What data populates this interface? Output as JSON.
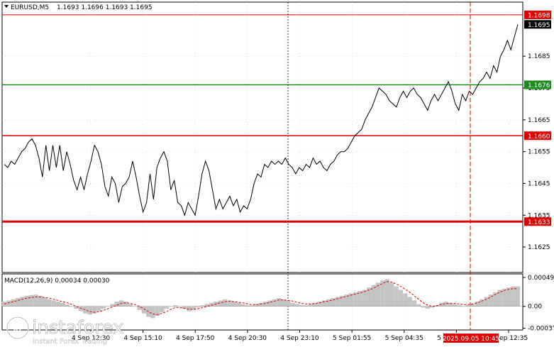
{
  "header": {
    "symbol": "EURUSD,M5",
    "ohlc": "1.1693 1.1696 1.1693 1.1695"
  },
  "macd_label": "MACD(12,26,9) 0.00034 0.00030",
  "watermark": {
    "brand": "instaforex",
    "tagline": "Instant Forex Trading"
  },
  "colors": {
    "resistance": "#e00000",
    "current": "#000000",
    "level_green": "#1a8a1a",
    "level_red": "#e00000",
    "macd_hist": "#c4c4c4",
    "macd_signal": "#e00000"
  },
  "chart_data": [
    {
      "type": "line",
      "ylim": [
        1.1617,
        1.1702
      ],
      "y_ticks": [
        "1.1685",
        "1.1675",
        "1.1665",
        "1.1655",
        "1.1645",
        "1.1635",
        "1.1625"
      ],
      "x_ticks": [
        "4 Sep 12:30",
        "4 Sep 15:10",
        "4 Sep 17:50",
        "4 Sep 20:30",
        "4 Sep 23:10",
        "5 Sep 01:55",
        "5 Sep 04:35",
        "5 Sep 07:15",
        "5 Sep 12:35"
      ],
      "price_tags": [
        {
          "label": "1.1698",
          "value": 1.1698,
          "style": "resistance"
        },
        {
          "label": "1.1695",
          "value": 1.1695,
          "style": "current"
        },
        {
          "label": "1.1676",
          "value": 1.1676,
          "style": "level_green"
        },
        {
          "label": "1.1660",
          "value": 1.166,
          "style": "level_red"
        },
        {
          "label": "1.1633",
          "value": 1.1633,
          "style": "level_red"
        }
      ],
      "levels": [
        {
          "value": 1.1698,
          "style": "resistance"
        },
        {
          "value": 1.1676,
          "style": "level_green"
        },
        {
          "value": 1.166,
          "style": "level_red"
        },
        {
          "value": 1.1633,
          "style": "level_red"
        }
      ],
      "time_marker": {
        "label": "2025.09.05 10:45"
      },
      "close": [
        1.1651,
        1.165,
        1.1652,
        1.1651,
        1.1653,
        1.1655,
        1.1656,
        1.1658,
        1.1659,
        1.1657,
        1.1653,
        1.1647,
        1.1657,
        1.1649,
        1.1657,
        1.165,
        1.1657,
        1.1649,
        1.1655,
        1.1651,
        1.1646,
        1.1643,
        1.1647,
        1.1643,
        1.1648,
        1.1652,
        1.1657,
        1.1655,
        1.1651,
        1.1644,
        1.1641,
        1.1647,
        1.1645,
        1.1639,
        1.1644,
        1.1645,
        1.1647,
        1.1652,
        1.1647,
        1.1641,
        1.1636,
        1.1639,
        1.1648,
        1.164,
        1.165,
        1.1653,
        1.1655,
        1.1652,
        1.1643,
        1.1646,
        1.1639,
        1.1638,
        1.1635,
        1.1639,
        1.1637,
        1.1635,
        1.1641,
        1.1648,
        1.1652,
        1.1649,
        1.1643,
        1.1637,
        1.164,
        1.1637,
        1.1639,
        1.1641,
        1.1638,
        1.164,
        1.1636,
        1.1638,
        1.1637,
        1.164,
        1.1645,
        1.1648,
        1.1647,
        1.1651,
        1.165,
        1.1652,
        1.1651,
        1.1652,
        1.1651,
        1.1653,
        1.1651,
        1.165,
        1.1648,
        1.165,
        1.1649,
        1.1651,
        1.165,
        1.1653,
        1.1651,
        1.1652,
        1.165,
        1.1649,
        1.1651,
        1.1652,
        1.1654,
        1.1655,
        1.1655,
        1.1656,
        1.1658,
        1.166,
        1.1661,
        1.1662,
        1.1665,
        1.1667,
        1.1669,
        1.1672,
        1.1675,
        1.1674,
        1.1673,
        1.1671,
        1.167,
        1.1669,
        1.1672,
        1.1674,
        1.1672,
        1.1674,
        1.1675,
        1.1673,
        1.1672,
        1.167,
        1.1668,
        1.1671,
        1.1673,
        1.1671,
        1.1673,
        1.1675,
        1.1677,
        1.1674,
        1.167,
        1.1668,
        1.1673,
        1.1671,
        1.1674,
        1.1673,
        1.1675,
        1.1677,
        1.1678,
        1.168,
        1.1678,
        1.1682,
        1.168,
        1.1685,
        1.1687,
        1.169,
        1.1687,
        1.1691,
        1.1695
      ]
    },
    {
      "type": "bar",
      "title": "MACD(12,26,9)",
      "ylim": [
        -0.0004,
        0.00055
      ],
      "y_ticks": [
        "0.00049",
        "0.00",
        "-0.00037"
      ],
      "series": [
        {
          "name": "MACD",
          "values": [
            8e-05,
            0.0001,
            0.00012,
            0.00014,
            0.00016,
            0.00018,
            0.00019,
            0.0002,
            0.00018,
            0.00015,
            0.00012,
            0.0001,
            8e-05,
            6e-05,
            3e-05,
            0.0,
            -4e-05,
            -8e-05,
            -0.00012,
            -0.00014,
            -0.00012,
            -8e-05,
            -4e-05,
            0.0,
            4e-05,
            8e-05,
            0.0001,
            8e-05,
            4e-05,
            0.0,
            -6e-05,
            -0.00012,
            -0.00018,
            -0.0002,
            -0.00016,
            -0.0001,
            -4e-05,
            0.0,
            2e-05,
            0.0,
            -4e-05,
            -8e-05,
            -6e-05,
            -2e-05,
            2e-05,
            4e-05,
            6e-05,
            8e-05,
            0.0001,
            0.00012,
            0.0001,
            8e-05,
            6e-05,
            4e-05,
            2e-05,
            2e-05,
            4e-05,
            6e-05,
            8e-05,
            0.0001,
            0.00012,
            0.00014,
            0.00012,
            0.0001,
            6e-05,
            4e-05,
            2e-05,
            2e-05,
            4e-05,
            6e-05,
            8e-05,
            0.0001,
            0.00012,
            0.00014,
            0.00016,
            0.00018,
            0.0002,
            0.00022,
            0.00024,
            0.00026,
            0.00028,
            0.00032,
            0.00036,
            0.0004,
            0.00044,
            0.00046,
            0.0004,
            0.00034,
            0.00028,
            0.00022,
            0.00016,
            0.0001,
            4e-05,
            -2e-05,
            -4e-05,
            -2e-05,
            2e-05,
            6e-05,
            8e-05,
            6e-05,
            4e-05,
            2e-05,
            0.0,
            2e-05,
            4e-05,
            8e-05,
            0.00012,
            0.00016,
            0.0002,
            0.00024,
            0.00028,
            0.0003,
            0.00032,
            0.00034,
            0.00034
          ]
        },
        {
          "name": "Signal",
          "values": [
            4e-05,
            6e-05,
            8e-05,
            0.0001,
            0.00012,
            0.00014,
            0.00015,
            0.00016,
            0.00016,
            0.00015,
            0.00014,
            0.00012,
            0.0001,
            8e-05,
            6e-05,
            3e-05,
            0.0,
            -3e-05,
            -6e-05,
            -9e-05,
            -0.0001,
            -9e-05,
            -7e-05,
            -4e-05,
            -1e-05,
            2e-05,
            5e-05,
            6e-05,
            5e-05,
            3e-05,
            0.0,
            -4e-05,
            -9e-05,
            -0.00013,
            -0.00014,
            -0.00012,
            -9e-05,
            -5e-05,
            -2e-05,
            -2e-05,
            -3e-05,
            -5e-05,
            -5e-05,
            -4e-05,
            -2e-05,
            0.0,
            2e-05,
            4e-05,
            6e-05,
            8e-05,
            9e-05,
            8e-05,
            7e-05,
            6e-05,
            4e-05,
            3e-05,
            3e-05,
            4e-05,
            5e-05,
            7e-05,
            9e-05,
            0.00011,
            0.00011,
            0.0001,
            9e-05,
            7e-05,
            5e-05,
            4e-05,
            4e-05,
            5e-05,
            6e-05,
            8e-05,
            9e-05,
            0.00011,
            0.00013,
            0.00015,
            0.00017,
            0.00019,
            0.00021,
            0.00023,
            0.00025,
            0.00028,
            0.00031,
            0.00035,
            0.00039,
            0.00042,
            0.00041,
            0.00038,
            0.00034,
            0.00029,
            0.00024,
            0.00018,
            0.00012,
            6e-05,
            2e-05,
            0.0,
            1e-05,
            3e-05,
            5e-05,
            5e-05,
            5e-05,
            4e-05,
            3e-05,
            3e-05,
            4e-05,
            6e-05,
            9e-05,
            0.00012,
            0.00016,
            0.0002,
            0.00024,
            0.00027,
            0.00029,
            0.0003,
            0.0003
          ]
        }
      ]
    }
  ]
}
